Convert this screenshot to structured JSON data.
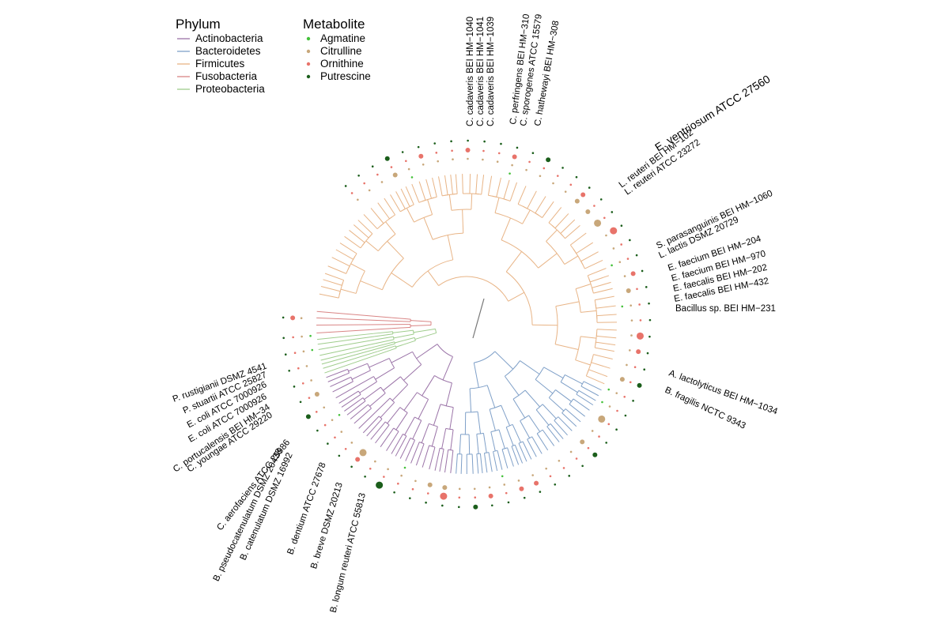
{
  "legend": {
    "phylum_title": "Phylum",
    "phyla": [
      {
        "name": "Actinobacteria",
        "color": "#9b74a8"
      },
      {
        "name": "Bacteroidetes",
        "color": "#7fa0c8"
      },
      {
        "name": "Firmicutes",
        "color": "#e8b486"
      },
      {
        "name": "Fusobacteria",
        "color": "#d98585"
      },
      {
        "name": "Proteobacteria",
        "color": "#9fcc8c"
      }
    ],
    "metabolite_title": "Metabolite",
    "metabolites": [
      {
        "name": "Agmatine",
        "color": "#44c13a"
      },
      {
        "name": "Citrulline",
        "color": "#c8a77a"
      },
      {
        "name": "Ornithine",
        "color": "#e8736a"
      },
      {
        "name": "Putrescine",
        "color": "#1b5e1b"
      }
    ]
  },
  "tip_labels": [
    "C. cadaveris BEI HM−1040",
    "C. cadaveris BEI HM−1041",
    "C. cadaveris BEI HM−1039",
    "C. perfringens BEI HM−310",
    "C. sporogenes ATCC 15579",
    "C. hathewayi BEI HM−308",
    "E. ventriosum ATCC 27560",
    "L. reuteri BEI HM−102",
    "L. reuteri ATCC 23272",
    "S. parasanguinis BEI HM−1060",
    "L. lactis DSMZ 20729",
    "E. faecium BEI HM−204",
    "E. faecium BEI HM−970",
    "E. faecalis BEI HM−202",
    "E. faecalis BEI HM−432",
    "Bacillus sp. BEI HM−231",
    "A. lactolyticus BEI HM−1034",
    "B. fragilis NCTC 9343",
    "B. longum reuteri ATCC 55813",
    "B. breve DSMZ 20213",
    "B. dentium ATCC 27678",
    "B. catenulatum DSMZ 16992",
    "B. pseudocatenulatum DSMZ 20438",
    "C. aerofaciens ATCC 25986",
    "C. youngae ATCC 29220",
    "C. portucalensis BEI HM−34",
    "E. coli ATCC 7000926",
    "E. coli ATCC 7000926",
    "P. stuartii ATCC 25827",
    "P. rustigianii DSMZ 4541"
  ]
}
